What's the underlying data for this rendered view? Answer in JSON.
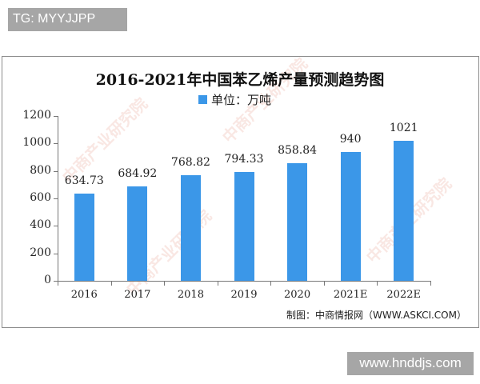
{
  "watermark_tags": {
    "top": "TG: MYYJJPP",
    "bottom": "www.hnddjs.com"
  },
  "colors": {
    "bar": "#3b97e8",
    "frame": "#8c8c8c",
    "tag_bg": "#a6a6a6"
  },
  "chart_data": {
    "type": "bar",
    "title": "2016-2021年中国苯乙烯产量预测趋势图",
    "legend": [
      "单位：万吨"
    ],
    "legend_position": "top",
    "categories": [
      "2016",
      "2017",
      "2018",
      "2019",
      "2020",
      "2021E",
      "2022E"
    ],
    "values": [
      634.73,
      684.92,
      768.82,
      794.33,
      858.84,
      940,
      1021
    ],
    "value_labels": [
      "634.73",
      "684.92",
      "768.82",
      "794.33",
      "858.84",
      "940",
      "1021"
    ],
    "xlabel": "",
    "ylabel": "",
    "ylim": [
      0,
      1200
    ],
    "yticks": [
      "0",
      "200",
      "400",
      "600",
      "800",
      "1000",
      "1200"
    ],
    "grid": false,
    "source": "制图：中商情报网（WWW.ASKCI.COM）"
  }
}
